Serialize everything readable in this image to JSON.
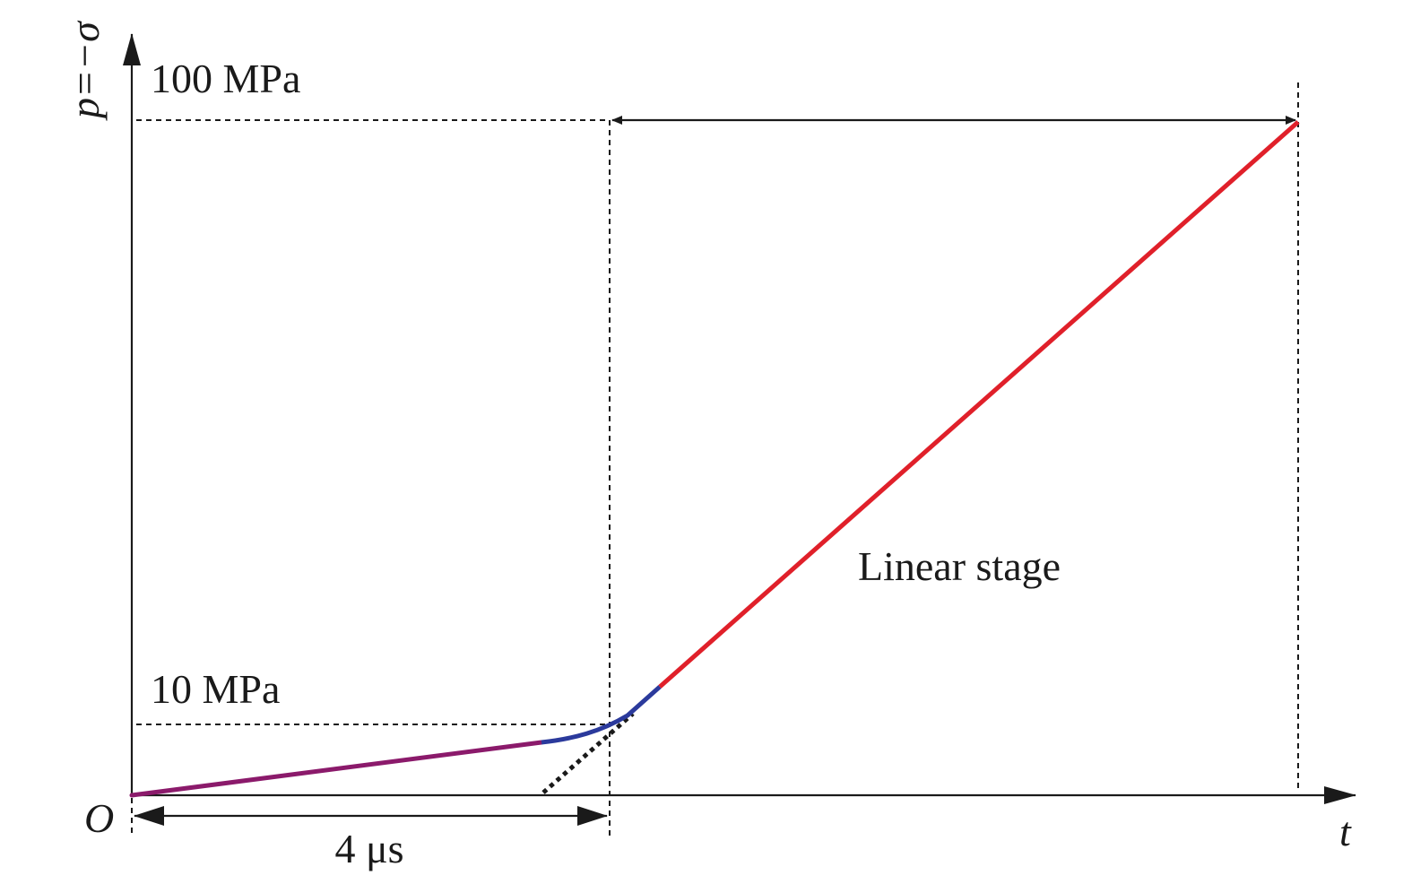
{
  "axes": {
    "y_label": "p=−σ",
    "x_label": "t",
    "origin_label": "O"
  },
  "levels": {
    "upper": "100 MPa",
    "lower": "10 MPa"
  },
  "dimensions": {
    "rise_time": "4 μs"
  },
  "annotations": {
    "linear_stage": "Linear stage"
  },
  "colors": {
    "initial_segment": "#8b1a6b",
    "transition_segment": "#2b3a9c",
    "linear_segment": "#e0202a",
    "ink": "#1a1a1a"
  }
}
